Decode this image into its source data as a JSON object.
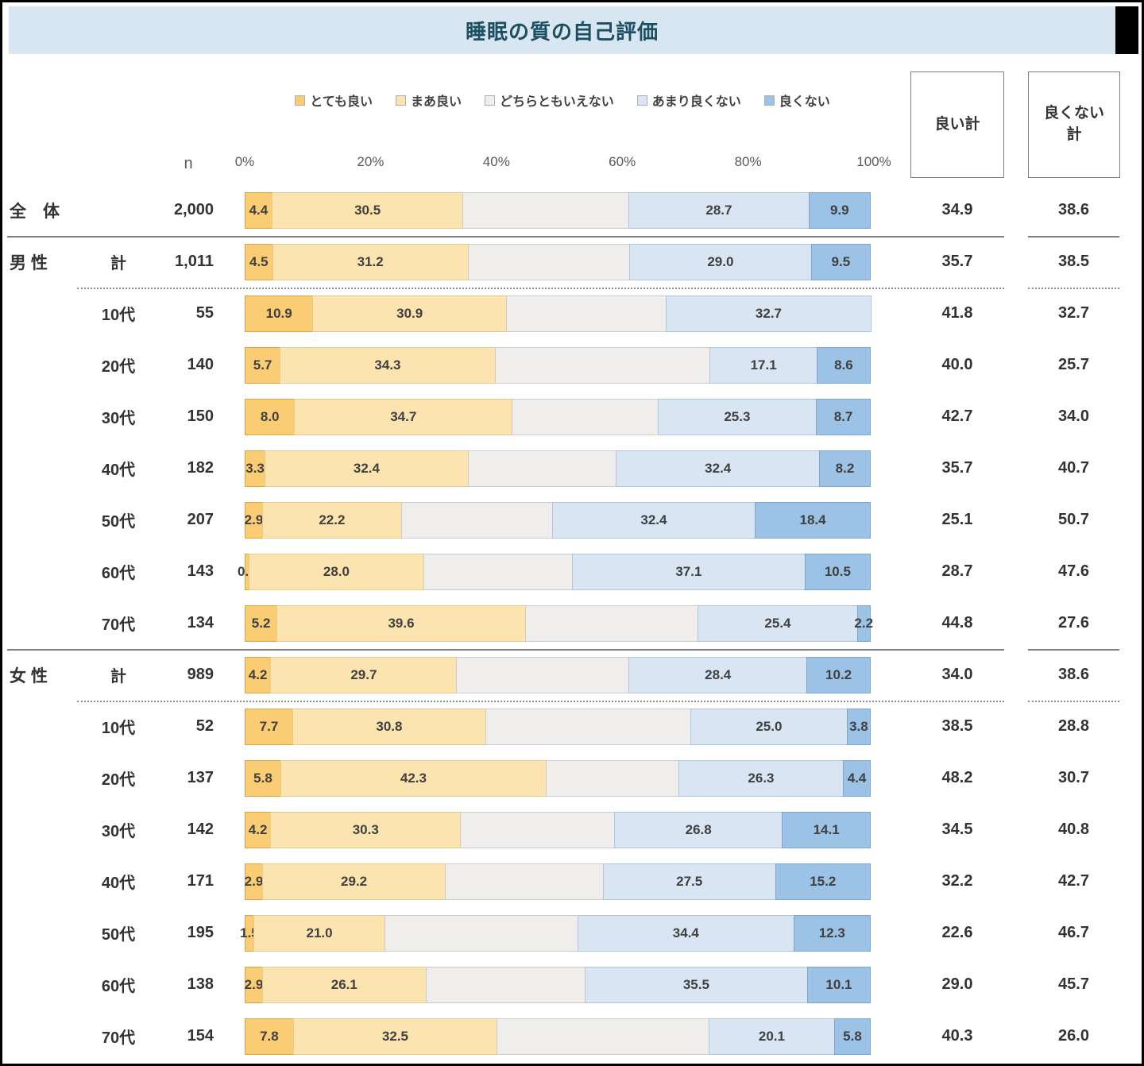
{
  "title": {
    "text": "睡眠の質の自己評価",
    "bg_color": "#D8E6F1",
    "text_color": "#1D4F63"
  },
  "header": {
    "n_label": "n",
    "good_total_label": "良い計",
    "bad_total_label": "良くない計"
  },
  "legend": [
    {
      "key": "very_good",
      "label": "とても良い",
      "fill": "#FACD74",
      "border": "#D9A648"
    },
    {
      "key": "fairly_good",
      "label": "まあ良い",
      "fill": "#FBE4AF",
      "border": "#E3CB92"
    },
    {
      "key": "neutral",
      "label": "どちらともいえない",
      "fill": "#EFEEEC",
      "border": "#CCCCC8"
    },
    {
      "key": "not_very_good",
      "label": "あまり良くない",
      "fill": "#D9E5F2",
      "border": "#AEC6DE"
    },
    {
      "key": "bad",
      "label": "良くない",
      "fill": "#9CC2E5",
      "border": "#7CA6CF"
    }
  ],
  "axis": {
    "ticks": [
      "0%",
      "20%",
      "40%",
      "60%",
      "80%",
      "100%"
    ],
    "positions": [
      0,
      20,
      40,
      60,
      80,
      100
    ]
  },
  "chart_data": {
    "type": "bar",
    "orientation": "horizontal_stacked_100pct",
    "title": "睡眠の質の自己評価",
    "series_names": [
      "とても良い",
      "まあ良い",
      "どちらともいえない",
      "あまり良くない",
      "良くない"
    ],
    "x_axis": {
      "ticks": [
        "0%",
        "20%",
        "40%",
        "60%",
        "80%",
        "100%"
      ],
      "range": [
        0,
        100
      ]
    },
    "summary_columns": [
      "良い計",
      "良くない計"
    ],
    "rows": [
      {
        "group": "全　体",
        "age": "",
        "n": "2,000",
        "values": [
          4.4,
          30.5,
          26.5,
          28.7,
          9.9
        ],
        "labels": [
          "4.4",
          "30.5",
          "",
          "28.7",
          "9.9"
        ],
        "good": "34.9",
        "bad": "38.6",
        "sep": "solid"
      },
      {
        "group": "男 性",
        "age": "計",
        "n": "1,011",
        "values": [
          4.5,
          31.2,
          25.8,
          29.0,
          9.5
        ],
        "labels": [
          "4.5",
          "31.2",
          "",
          "29.0",
          "9.5"
        ],
        "good": "35.7",
        "bad": "38.5",
        "sep": "dotted"
      },
      {
        "group": "",
        "age": "10代",
        "n": "55",
        "values": [
          10.9,
          30.9,
          25.5,
          32.7,
          0
        ],
        "labels": [
          "10.9",
          "30.9",
          "",
          "32.7",
          ""
        ],
        "good": "41.8",
        "bad": "32.7",
        "sep": null
      },
      {
        "group": "",
        "age": "20代",
        "n": "140",
        "values": [
          5.7,
          34.3,
          34.3,
          17.1,
          8.6
        ],
        "labels": [
          "5.7",
          "34.3",
          "",
          "17.1",
          "8.6"
        ],
        "good": "40.0",
        "bad": "25.7",
        "sep": null
      },
      {
        "group": "",
        "age": "30代",
        "n": "150",
        "values": [
          8.0,
          34.7,
          23.3,
          25.3,
          8.7
        ],
        "labels": [
          "8.0",
          "34.7",
          "",
          "25.3",
          "8.7"
        ],
        "good": "42.7",
        "bad": "34.0",
        "sep": null
      },
      {
        "group": "",
        "age": "40代",
        "n": "182",
        "values": [
          3.3,
          32.4,
          23.7,
          32.4,
          8.2
        ],
        "labels": [
          "3.3",
          "32.4",
          "",
          "32.4",
          "8.2"
        ],
        "good": "35.7",
        "bad": "40.7",
        "sep": null
      },
      {
        "group": "",
        "age": "50代",
        "n": "207",
        "values": [
          2.9,
          22.2,
          24.1,
          32.4,
          18.4
        ],
        "labels": [
          "2.9",
          "22.2",
          "",
          "32.4",
          "18.4"
        ],
        "good": "25.1",
        "bad": "50.7",
        "sep": null
      },
      {
        "group": "",
        "age": "60代",
        "n": "143",
        "values": [
          0.7,
          28.0,
          23.7,
          37.1,
          10.5
        ],
        "labels": [
          "0.7",
          "28.0",
          "",
          "37.1",
          "10.5"
        ],
        "good": "28.7",
        "bad": "47.6",
        "sep": null
      },
      {
        "group": "",
        "age": "70代",
        "n": "134",
        "values": [
          5.2,
          39.6,
          27.6,
          25.4,
          2.2
        ],
        "labels": [
          "5.2",
          "39.6",
          "",
          "25.4",
          "2.2"
        ],
        "good": "44.8",
        "bad": "27.6",
        "sep": "solid"
      },
      {
        "group": "女 性",
        "age": "計",
        "n": "989",
        "values": [
          4.2,
          29.7,
          27.5,
          28.4,
          10.2
        ],
        "labels": [
          "4.2",
          "29.7",
          "",
          "28.4",
          "10.2"
        ],
        "good": "34.0",
        "bad": "38.6",
        "sep": "dotted"
      },
      {
        "group": "",
        "age": "10代",
        "n": "52",
        "values": [
          7.7,
          30.8,
          32.7,
          25.0,
          3.8
        ],
        "labels": [
          "7.7",
          "30.8",
          "",
          "25.0",
          "3.8"
        ],
        "good": "38.5",
        "bad": "28.8",
        "sep": null
      },
      {
        "group": "",
        "age": "20代",
        "n": "137",
        "values": [
          5.8,
          42.3,
          21.2,
          26.3,
          4.4
        ],
        "labels": [
          "5.8",
          "42.3",
          "",
          "26.3",
          "4.4"
        ],
        "good": "48.2",
        "bad": "30.7",
        "sep": null
      },
      {
        "group": "",
        "age": "30代",
        "n": "142",
        "values": [
          4.2,
          30.3,
          24.6,
          26.8,
          14.1
        ],
        "labels": [
          "4.2",
          "30.3",
          "",
          "26.8",
          "14.1"
        ],
        "good": "34.5",
        "bad": "40.8",
        "sep": null
      },
      {
        "group": "",
        "age": "40代",
        "n": "171",
        "values": [
          2.9,
          29.2,
          25.2,
          27.5,
          15.2
        ],
        "labels": [
          "2.9",
          "29.2",
          "",
          "27.5",
          "15.2"
        ],
        "good": "32.2",
        "bad": "42.7",
        "sep": null
      },
      {
        "group": "",
        "age": "50代",
        "n": "195",
        "values": [
          1.5,
          21.0,
          30.8,
          34.4,
          12.3
        ],
        "labels": [
          "1.5",
          "21.0",
          "",
          "34.4",
          "12.3"
        ],
        "good": "22.6",
        "bad": "46.7",
        "sep": null
      },
      {
        "group": "",
        "age": "60代",
        "n": "138",
        "values": [
          2.9,
          26.1,
          25.4,
          35.5,
          10.1
        ],
        "labels": [
          "2.9",
          "26.1",
          "",
          "35.5",
          "10.1"
        ],
        "good": "29.0",
        "bad": "45.7",
        "sep": null
      },
      {
        "group": "",
        "age": "70代",
        "n": "154",
        "values": [
          7.8,
          32.5,
          33.8,
          20.1,
          5.8
        ],
        "labels": [
          "7.8",
          "32.5",
          "",
          "20.1",
          "5.8"
        ],
        "good": "40.3",
        "bad": "26.0",
        "sep": null
      }
    ]
  }
}
